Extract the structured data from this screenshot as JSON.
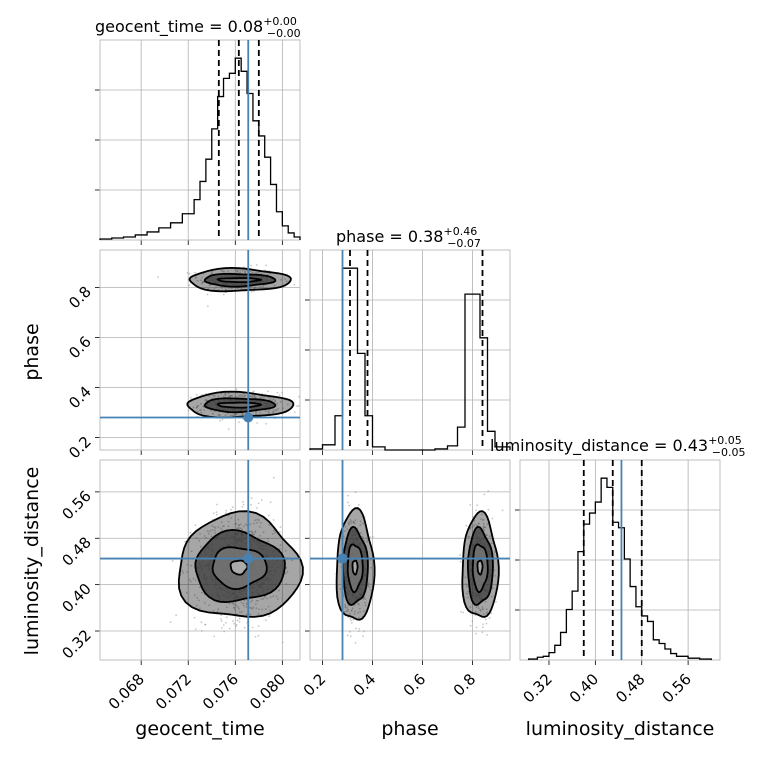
{
  "chart_data": {
    "type": "corner",
    "parameters": [
      {
        "key": "geocent_time",
        "label": "geocent_time",
        "range": [
          0.0645,
          0.0815
        ],
        "ticks": [
          0.068,
          0.072,
          0.076,
          0.08
        ],
        "tick_labels": [
          "0.068",
          "0.072",
          "0.076",
          "0.080"
        ],
        "truth": 0.0771,
        "title_main": "geocent_time = 0.08",
        "title_sup": "+0.00",
        "title_sub": "−0.00",
        "quantiles": [
          0.0746,
          0.0763,
          0.078
        ]
      },
      {
        "key": "phase",
        "label": "phase",
        "range": [
          0.15,
          0.95
        ],
        "ticks": [
          0.2,
          0.4,
          0.6,
          0.8
        ],
        "tick_labels": [
          "0.2",
          "0.4",
          "0.6",
          "0.8"
        ],
        "truth": 0.28,
        "title_main": "phase = 0.38",
        "title_sup": "+0.46",
        "title_sub": "−0.07",
        "quantiles": [
          0.31,
          0.38,
          0.84
        ]
      },
      {
        "key": "luminosity_distance",
        "label": "luminosity_distance",
        "range": [
          0.27,
          0.615
        ],
        "ticks": [
          0.32,
          0.4,
          0.48,
          0.56
        ],
        "tick_labels": [
          "0.32",
          "0.40",
          "0.48",
          "0.56"
        ],
        "truth": 0.445,
        "title_main": "luminosity_distance = 0.43",
        "title_sup": "+0.05",
        "title_sub": "−0.05",
        "quantiles": [
          0.38,
          0.43,
          0.48
        ]
      }
    ],
    "histograms": {
      "geocent_time": {
        "edges": [
          0.0645,
          0.0655,
          0.0665,
          0.0675,
          0.0685,
          0.0695,
          0.0705,
          0.0715,
          0.0725,
          0.073,
          0.0735,
          0.074,
          0.0745,
          0.075,
          0.0755,
          0.076,
          0.0765,
          0.077,
          0.0775,
          0.078,
          0.0785,
          0.079,
          0.0795,
          0.08,
          0.0805,
          0.081,
          0.0815
        ],
        "counts": [
          1,
          2,
          3,
          5,
          8,
          12,
          17,
          26,
          40,
          58,
          80,
          110,
          142,
          160,
          165,
          180,
          167,
          145,
          118,
          103,
          82,
          55,
          28,
          14,
          7,
          3
        ]
      },
      "phase": {
        "edges": [
          0.15,
          0.2,
          0.25,
          0.28,
          0.31,
          0.34,
          0.37,
          0.4,
          0.45,
          0.55,
          0.65,
          0.7,
          0.74,
          0.77,
          0.8,
          0.83,
          0.86,
          0.89,
          0.95
        ],
        "counts": [
          1,
          5,
          33,
          175,
          175,
          93,
          33,
          3,
          0,
          0,
          1,
          4,
          22,
          150,
          150,
          108,
          18,
          3
        ]
      },
      "luminosity_distance": {
        "edges": [
          0.285,
          0.3,
          0.31,
          0.32,
          0.33,
          0.34,
          0.35,
          0.36,
          0.37,
          0.38,
          0.39,
          0.4,
          0.41,
          0.42,
          0.43,
          0.44,
          0.45,
          0.46,
          0.47,
          0.48,
          0.49,
          0.5,
          0.51,
          0.52,
          0.53,
          0.54,
          0.56,
          0.58,
          0.6
        ],
        "counts": [
          1,
          3,
          4,
          8,
          16,
          30,
          55,
          75,
          118,
          148,
          160,
          172,
          198,
          188,
          150,
          144,
          110,
          80,
          58,
          48,
          42,
          22,
          18,
          12,
          7,
          4,
          2,
          1
        ]
      }
    },
    "pairs": [
      {
        "x": "geocent_time",
        "y": "phase",
        "truth": [
          0.0771,
          0.28
        ],
        "modes": [
          {
            "cx": 0.0763,
            "cy": 0.83,
            "sx": 0.0017,
            "sy": 0.025,
            "n": 320
          },
          {
            "cx": 0.0763,
            "cy": 0.33,
            "sx": 0.0017,
            "sy": 0.025,
            "n": 420
          }
        ],
        "contours": [
          {
            "cx": 0.0763,
            "cy": 0.83,
            "rx": [
              0.0018,
              0.003,
              0.0043
            ],
            "ry": [
              0.008,
              0.025,
              0.045
            ],
            "skew": 0.0
          },
          {
            "cx": 0.0763,
            "cy": 0.33,
            "rx": [
              0.0018,
              0.003,
              0.0045
            ],
            "ry": [
              0.01,
              0.027,
              0.05
            ],
            "skew": 0.0
          }
        ]
      },
      {
        "x": "geocent_time",
        "y": "luminosity_distance",
        "truth": [
          0.0771,
          0.445
        ],
        "modes": [
          {
            "cx": 0.0763,
            "cy": 0.43,
            "sx": 0.0018,
            "sy": 0.045,
            "n": 900
          }
        ],
        "contours": [
          {
            "cx": 0.0763,
            "cy": 0.43,
            "rx": [
              0.0007,
              0.0023,
              0.0038,
              0.0052
            ],
            "ry": [
              0.012,
              0.035,
              0.06,
              0.09
            ],
            "skew": 0.0
          }
        ]
      },
      {
        "x": "phase",
        "y": "luminosity_distance",
        "truth": [
          0.28,
          0.445
        ],
        "modes": [
          {
            "cx": 0.33,
            "cy": 0.43,
            "sx": 0.025,
            "sy": 0.045,
            "n": 450
          },
          {
            "cx": 0.83,
            "cy": 0.43,
            "sx": 0.025,
            "sy": 0.045,
            "n": 380
          }
        ],
        "contours": [
          {
            "cx": 0.33,
            "cy": 0.43,
            "rx": [
              0.01,
              0.03,
              0.05,
              0.075
            ],
            "ry": [
              0.012,
              0.04,
              0.065,
              0.095
            ],
            "skew": 0.0
          },
          {
            "cx": 0.83,
            "cy": 0.43,
            "rx": [
              0.01,
              0.03,
              0.05,
              0.072
            ],
            "ry": [
              0.012,
              0.04,
              0.065,
              0.09
            ],
            "skew": 0.0
          }
        ]
      }
    ],
    "grid": true,
    "truth_color": "#4682b4"
  }
}
